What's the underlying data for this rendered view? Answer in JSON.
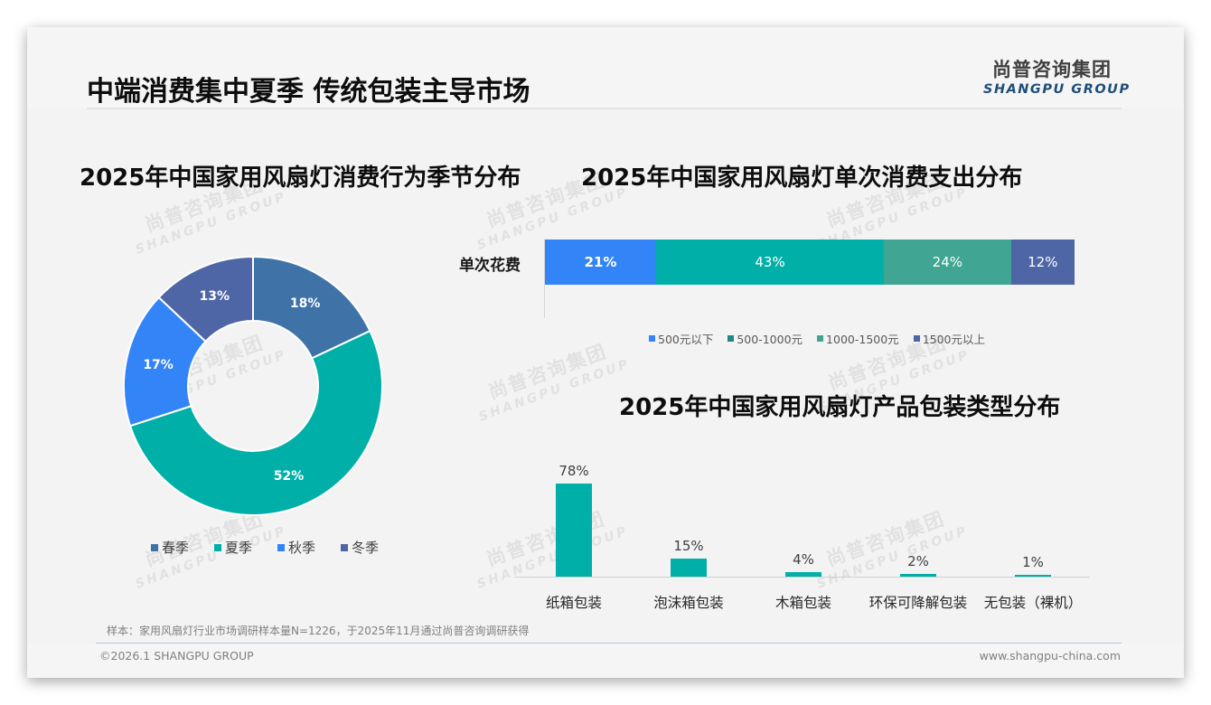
{
  "slide": {
    "title": "中端消费集中夏季 传统包装主导市场",
    "logo": {
      "cn": "尚普咨询集团",
      "en": "SHANGPU GROUP"
    },
    "watermark": {
      "cn": "尚普咨询集团",
      "en": "SHANGPU GROUP"
    },
    "footnote": "样本：家用风扇灯行业市场调研样本量N=1226，于2025年11月通过尚普咨询调研获得",
    "copyright": "©2026.1 SHANGPU GROUP",
    "website": "www.shangpu-china.com"
  },
  "colors": {
    "spring": "#3f73a8",
    "summer": "#00b0a8",
    "autumn": "#3384f6",
    "winter": "#4f66a6",
    "under500": "#3384f6",
    "r500_1000": "#00b0a8",
    "r1000_1500": "#40a693",
    "over1500": "#4f66a6",
    "legend_r500_1000": "#1f868a",
    "column": "#00b0a8"
  },
  "chart_data": [
    {
      "type": "pie",
      "variant": "donut",
      "title": "2025年中国家用风扇灯消费行为季节分布",
      "categories": [
        "春季",
        "夏季",
        "秋季",
        "冬季"
      ],
      "values": [
        18,
        52,
        17,
        13
      ],
      "labels": [
        "18%",
        "52%",
        "17%",
        "13%"
      ],
      "colors": [
        "#3f73a8",
        "#00b0a8",
        "#3384f6",
        "#4f66a6"
      ],
      "legend_position": "bottom"
    },
    {
      "type": "bar",
      "orientation": "horizontal",
      "stacked": true,
      "percent": true,
      "title": "2025年中国家用风扇灯单次消费支出分布",
      "categories": [
        "单次花费"
      ],
      "series": [
        {
          "name": "500元以下",
          "values": [
            21
          ],
          "label": "21%",
          "color": "#3384f6"
        },
        {
          "name": "500-1000元",
          "values": [
            43
          ],
          "label": "43%",
          "color": "#00b0a8"
        },
        {
          "name": "1000-1500元",
          "values": [
            24
          ],
          "label": "24%",
          "color": "#40a693"
        },
        {
          "name": "1500元以上",
          "values": [
            12
          ],
          "label": "12%",
          "color": "#4f66a6"
        }
      ],
      "legend_position": "bottom",
      "grid": false
    },
    {
      "type": "bar",
      "orientation": "vertical",
      "title": "2025年中国家用风扇灯产品包装类型分布",
      "categories": [
        "纸箱包装",
        "泡沫箱包装",
        "木箱包装",
        "环保可降解包装",
        "无包装（裸机）"
      ],
      "values": [
        78,
        15,
        4,
        2,
        1
      ],
      "labels": [
        "78%",
        "15%",
        "4%",
        "2%",
        "1%"
      ],
      "color": "#00b0a8",
      "ylim": [
        0,
        80
      ],
      "grid": false,
      "xlabel": "",
      "ylabel": ""
    }
  ]
}
